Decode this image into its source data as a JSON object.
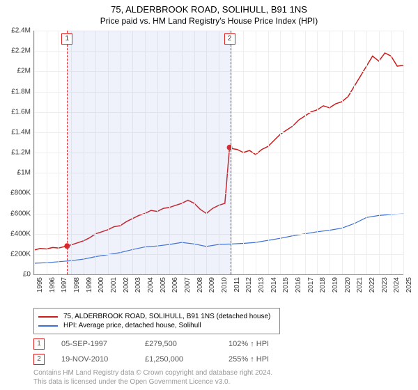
{
  "title": "75, ALDERBROOK ROAD, SOLIHULL, B91 1NS",
  "subtitle": "Price paid vs. HM Land Registry's House Price Index (HPI)",
  "chart": {
    "type": "line",
    "background_color": "#ffffff",
    "grid_color": "#eeeeee",
    "axis_color": "#888888",
    "title_fontsize": 13,
    "label_fontsize": 10,
    "x_start_year": 1995,
    "x_end_year": 2025,
    "x_tick_step": 1,
    "ylim": [
      0,
      2400000
    ],
    "ytick_step": 200000,
    "yticks": [
      "£0",
      "£200K",
      "£400K",
      "£600K",
      "£800K",
      "£1M",
      "£1.2M",
      "£1.4M",
      "£1.6M",
      "£1.8M",
      "£2M",
      "£2.2M",
      "£2.4M"
    ],
    "shaded_region": {
      "start_year": 1997.68,
      "end_year": 2010.88,
      "fill": "rgba(120,150,220,0.12)",
      "border": "#d22"
    },
    "markers": [
      {
        "label": "1",
        "year": 1997.68,
        "price": 279500,
        "color": "#d22"
      },
      {
        "label": "2",
        "year": 2010.88,
        "price": 1250000,
        "color": "#d22"
      }
    ],
    "series": [
      {
        "name": "75, ALDERBROOK ROAD, SOLIHULL, B91 1NS (detached house)",
        "color": "#cc1b1b",
        "line_width": 1.5,
        "data": [
          [
            1995.0,
            240000
          ],
          [
            1995.5,
            255000
          ],
          [
            1996.0,
            250000
          ],
          [
            1996.5,
            265000
          ],
          [
            1997.0,
            260000
          ],
          [
            1997.68,
            279500
          ],
          [
            1998.0,
            290000
          ],
          [
            1998.5,
            310000
          ],
          [
            1999.0,
            330000
          ],
          [
            1999.5,
            360000
          ],
          [
            2000.0,
            400000
          ],
          [
            2000.5,
            420000
          ],
          [
            2001.0,
            440000
          ],
          [
            2001.5,
            470000
          ],
          [
            2002.0,
            480000
          ],
          [
            2002.5,
            520000
          ],
          [
            2003.0,
            550000
          ],
          [
            2003.5,
            580000
          ],
          [
            2004.0,
            600000
          ],
          [
            2004.5,
            630000
          ],
          [
            2005.0,
            620000
          ],
          [
            2005.5,
            650000
          ],
          [
            2006.0,
            660000
          ],
          [
            2006.5,
            680000
          ],
          [
            2007.0,
            700000
          ],
          [
            2007.5,
            730000
          ],
          [
            2008.0,
            700000
          ],
          [
            2008.5,
            640000
          ],
          [
            2009.0,
            600000
          ],
          [
            2009.5,
            650000
          ],
          [
            2010.0,
            680000
          ],
          [
            2010.5,
            700000
          ],
          [
            2010.88,
            1250000
          ],
          [
            2011.0,
            1240000
          ],
          [
            2011.5,
            1230000
          ],
          [
            2012.0,
            1200000
          ],
          [
            2012.5,
            1220000
          ],
          [
            2013.0,
            1180000
          ],
          [
            2013.5,
            1230000
          ],
          [
            2014.0,
            1260000
          ],
          [
            2014.5,
            1320000
          ],
          [
            2015.0,
            1380000
          ],
          [
            2015.5,
            1420000
          ],
          [
            2016.0,
            1460000
          ],
          [
            2016.5,
            1520000
          ],
          [
            2017.0,
            1560000
          ],
          [
            2017.5,
            1600000
          ],
          [
            2018.0,
            1620000
          ],
          [
            2018.5,
            1660000
          ],
          [
            2019.0,
            1640000
          ],
          [
            2019.5,
            1680000
          ],
          [
            2020.0,
            1700000
          ],
          [
            2020.5,
            1750000
          ],
          [
            2021.0,
            1850000
          ],
          [
            2021.5,
            1950000
          ],
          [
            2022.0,
            2050000
          ],
          [
            2022.5,
            2150000
          ],
          [
            2023.0,
            2100000
          ],
          [
            2023.5,
            2180000
          ],
          [
            2024.0,
            2150000
          ],
          [
            2024.5,
            2050000
          ],
          [
            2025.0,
            2060000
          ]
        ]
      },
      {
        "name": "HPI: Average price, detached house, Solihull",
        "color": "#3b6fd6",
        "line_width": 1.2,
        "data": [
          [
            1995.0,
            110000
          ],
          [
            1996.0,
            115000
          ],
          [
            1997.0,
            125000
          ],
          [
            1998.0,
            135000
          ],
          [
            1999.0,
            150000
          ],
          [
            2000.0,
            175000
          ],
          [
            2001.0,
            195000
          ],
          [
            2002.0,
            215000
          ],
          [
            2003.0,
            245000
          ],
          [
            2004.0,
            270000
          ],
          [
            2005.0,
            280000
          ],
          [
            2006.0,
            295000
          ],
          [
            2007.0,
            315000
          ],
          [
            2008.0,
            300000
          ],
          [
            2009.0,
            275000
          ],
          [
            2010.0,
            295000
          ],
          [
            2011.0,
            300000
          ],
          [
            2012.0,
            305000
          ],
          [
            2013.0,
            315000
          ],
          [
            2014.0,
            335000
          ],
          [
            2015.0,
            355000
          ],
          [
            2016.0,
            380000
          ],
          [
            2017.0,
            400000
          ],
          [
            2018.0,
            420000
          ],
          [
            2019.0,
            435000
          ],
          [
            2020.0,
            455000
          ],
          [
            2021.0,
            500000
          ],
          [
            2022.0,
            560000
          ],
          [
            2023.0,
            580000
          ],
          [
            2024.0,
            590000
          ],
          [
            2025.0,
            595000
          ]
        ]
      }
    ]
  },
  "legend": {
    "items": [
      {
        "color": "#cc1b1b",
        "label": "75, ALDERBROOK ROAD, SOLIHULL, B91 1NS (detached house)"
      },
      {
        "color": "#3b6fd6",
        "label": "HPI: Average price, detached house, Solihull"
      }
    ]
  },
  "sales": [
    {
      "idx": "1",
      "date": "05-SEP-1997",
      "price": "£279,500",
      "pct": "102% ↑ HPI"
    },
    {
      "idx": "2",
      "date": "19-NOV-2010",
      "price": "£1,250,000",
      "pct": "255% ↑ HPI"
    }
  ],
  "footer_line1": "Contains HM Land Registry data © Crown copyright and database right 2024.",
  "footer_line2": "This data is licensed under the Open Government Licence v3.0."
}
